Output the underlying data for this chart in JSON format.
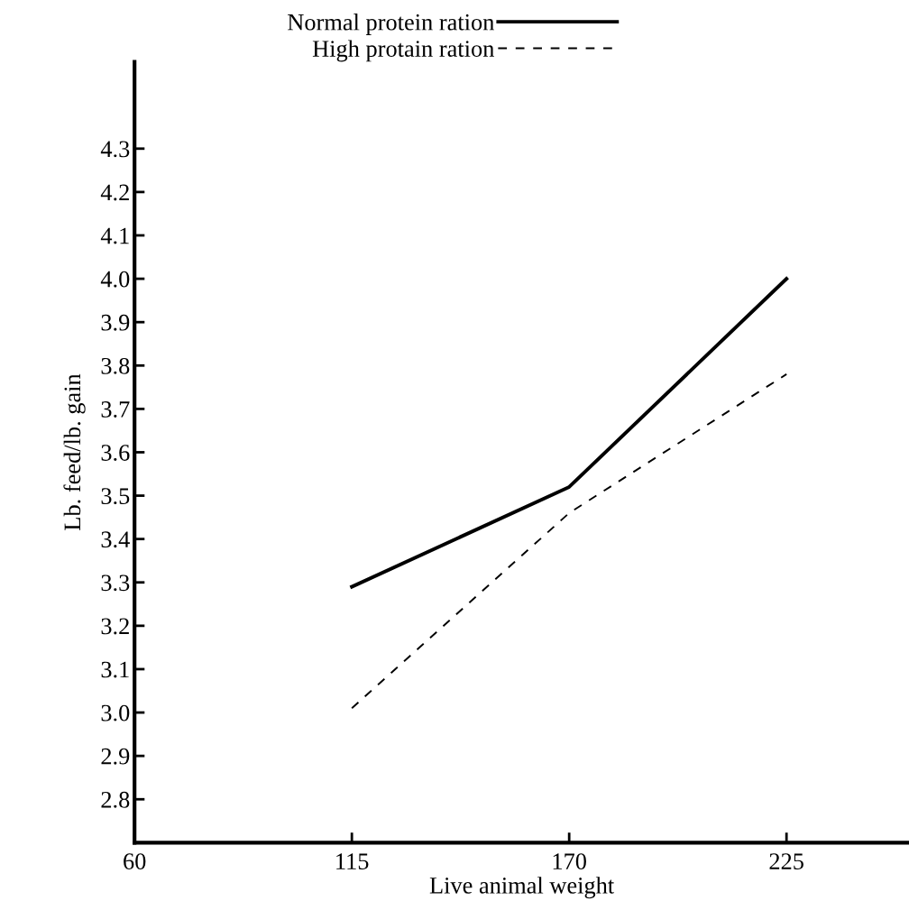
{
  "chart_data": {
    "type": "line",
    "xlabel": "Live animal weight",
    "ylabel": "Lb. feed/lb. gain",
    "x": [
      115,
      170,
      225
    ],
    "series": [
      {
        "name": "Normal protein ration",
        "color": "#000000",
        "values": [
          3.29,
          3.52,
          4.0
        ],
        "line_style": "solid"
      },
      {
        "name": "High protain ration",
        "color": "#000000",
        "values": [
          3.01,
          3.46,
          3.78
        ],
        "line_style": "dashed"
      }
    ],
    "xlim": [
      60,
      256
    ],
    "xticks": [
      60,
      115,
      170,
      225
    ],
    "ylim": [
      2.7,
      4.5
    ],
    "yticks": [
      2.8,
      2.9,
      {
        "value": 3.0,
        "label": "3.0"
      },
      3.1,
      3.2,
      3.3,
      3.4,
      3.5,
      3.6,
      3.7,
      3.8,
      3.9,
      {
        "value": 4.0,
        "label": "4.0"
      },
      4.1,
      4.2,
      4.3
    ],
    "grid": false,
    "legend": "top",
    "marker": "none"
  }
}
